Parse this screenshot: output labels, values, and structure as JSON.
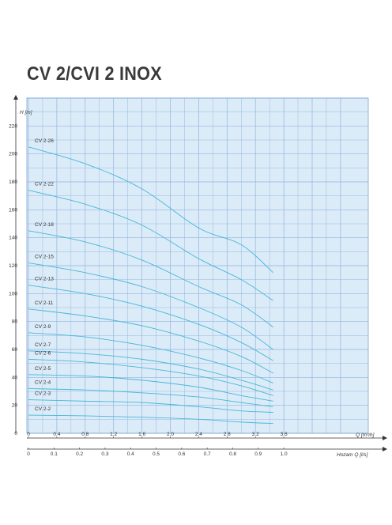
{
  "page": {
    "title": "CV 2/CVI 2 INOX"
  },
  "chart_data": {
    "type": "line",
    "title": "CV 2/CVI 2 INOX",
    "ylabel": "H [m]",
    "xlabel": "Q [m³/h]",
    "x2label": "Hozam Q [l/s]",
    "xlim": [
      0,
      4.4
    ],
    "ylim": [
      0,
      240
    ],
    "x_ticks": [
      "0",
      "0.4",
      "0.8",
      "1.2",
      "1.6",
      "2.0",
      "2.4",
      "2.8",
      "3.2",
      "3.6"
    ],
    "x2_ticks": [
      "0",
      "0.1",
      "0.2",
      "0.3",
      "0.4",
      "0.5",
      "0.6",
      "0.7",
      "0.8",
      "0.9",
      "1.0"
    ],
    "y_ticks": [
      "0",
      "20",
      "40",
      "60",
      "80",
      "100",
      "120",
      "140",
      "160",
      "180",
      "200",
      "220"
    ],
    "grid": true,
    "colors": {
      "grid": "#8fb5dd",
      "background": "#dcebf8",
      "curve": "#45b8d8",
      "axis": "#333333"
    },
    "series": [
      {
        "name": "CV 2-26",
        "x": [
          0,
          0.8,
          1.6,
          2.4,
          3.0,
          3.45
        ],
        "y": [
          205,
          193,
          175,
          147,
          135,
          115
        ]
      },
      {
        "name": "CV 2-22",
        "x": [
          0,
          0.8,
          1.6,
          2.4,
          3.0,
          3.45
        ],
        "y": [
          174,
          164,
          149,
          125,
          110,
          95
        ]
      },
      {
        "name": "CV 2-18",
        "x": [
          0,
          0.8,
          1.6,
          2.4,
          3.0,
          3.45
        ],
        "y": [
          145,
          137,
          124,
          105,
          92,
          76
        ]
      },
      {
        "name": "CV 2-15",
        "x": [
          0,
          0.8,
          1.6,
          2.4,
          3.0,
          3.45
        ],
        "y": [
          122,
          115,
          105,
          90,
          76,
          60
        ]
      },
      {
        "name": "CV 2-13",
        "x": [
          0,
          0.8,
          1.6,
          2.4,
          3.0,
          3.45
        ],
        "y": [
          106,
          100,
          91,
          78,
          65,
          52
        ]
      },
      {
        "name": "CV 2-11",
        "x": [
          0,
          0.8,
          1.6,
          2.4,
          3.0,
          3.45
        ],
        "y": [
          89,
          84,
          77,
          66,
          55,
          43
        ]
      },
      {
        "name": "CV 2-9",
        "x": [
          0,
          0.8,
          1.6,
          2.4,
          3.0,
          3.45
        ],
        "y": [
          72,
          69,
          63,
          54,
          45,
          36
        ]
      },
      {
        "name": "CV 2-7",
        "x": [
          0,
          0.8,
          1.6,
          2.4,
          3.0,
          3.45
        ],
        "y": [
          59,
          57,
          53,
          46,
          38,
          31
        ]
      },
      {
        "name": "CV 2-6",
        "x": [
          0,
          0.8,
          1.6,
          2.4,
          3.0,
          3.45
        ],
        "y": [
          53,
          51,
          47,
          41,
          34,
          27
        ]
      },
      {
        "name": "CV 2-5",
        "x": [
          0,
          0.8,
          1.6,
          2.4,
          3.0,
          3.45
        ],
        "y": [
          42,
          41,
          38,
          33,
          27,
          23
        ]
      },
      {
        "name": "CV 2-4",
        "x": [
          0,
          0.8,
          1.6,
          2.4,
          3.0,
          3.45
        ],
        "y": [
          32,
          31,
          29,
          26,
          22,
          19
        ]
      },
      {
        "name": "CV 2-3",
        "x": [
          0,
          0.8,
          1.6,
          2.4,
          3.0,
          3.45
        ],
        "y": [
          24,
          23,
          22,
          19,
          16,
          15
        ]
      },
      {
        "name": "CV 2-2",
        "x": [
          0,
          0.8,
          1.6,
          2.4,
          3.0,
          3.45
        ],
        "y": [
          13,
          12.5,
          11.5,
          10,
          8,
          7
        ]
      }
    ]
  }
}
